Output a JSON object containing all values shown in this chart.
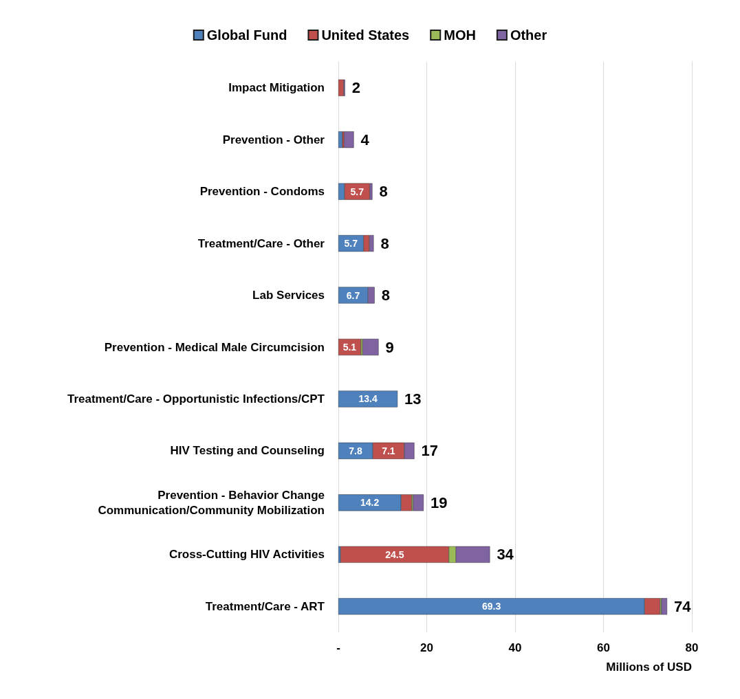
{
  "chart_data": {
    "type": "bar",
    "orientation": "horizontal",
    "stacked": true,
    "categories": [
      "Impact Mitigation",
      "Prevention - Other",
      "Prevention - Condoms",
      "Treatment/Care - Other",
      "Lab Services",
      "Prevention - Medical Male Circumcision",
      "Treatment/Care - Opportunistic Infections/CPT",
      "HIV Testing and Counseling",
      "Prevention - Behavior Change\nCommunication/Community Mobilization",
      "Cross-Cutting HIV Activities",
      "Treatment/Care - ART"
    ],
    "series": [
      {
        "name": "Global Fund",
        "color": "#4f81bd",
        "values": [
          null,
          0.9,
          1.4,
          5.7,
          6.7,
          null,
          13.4,
          7.8,
          14.2,
          0.5,
          69.3
        ],
        "value_labels": [
          null,
          null,
          null,
          "5.7",
          "6.7",
          null,
          "13.4",
          "7.8",
          "14.2",
          null,
          "69.3"
        ]
      },
      {
        "name": "United States",
        "color": "#c0504d",
        "values": [
          1.2,
          0.4,
          5.7,
          1.3,
          null,
          5.1,
          null,
          7.1,
          2.4,
          24.5,
          3.5
        ],
        "value_labels": [
          null,
          null,
          "5.7",
          null,
          null,
          "5.1",
          null,
          "7.1",
          null,
          "24.5",
          null
        ]
      },
      {
        "name": "MOH",
        "color": "#9bbb59",
        "values": [
          null,
          null,
          null,
          null,
          null,
          0.4,
          null,
          null,
          0.3,
          1.6,
          0.3
        ]
      },
      {
        "name": "Other",
        "color": "#8064a2",
        "values": [
          0.3,
          2.2,
          0.6,
          1.0,
          1.5,
          3.6,
          null,
          2.3,
          2.4,
          7.7,
          1.3
        ]
      }
    ],
    "totals": [
      "2",
      "4",
      "8",
      "8",
      "8",
      "9",
      "13",
      "17",
      "19",
      "34",
      "74"
    ],
    "xlim": [
      0,
      80
    ],
    "xticks": [
      {
        "value": 0,
        "label": "-"
      },
      20,
      40,
      60,
      80
    ],
    "xlabel": "Millions of USD",
    "grid": "x",
    "legend": "top"
  }
}
